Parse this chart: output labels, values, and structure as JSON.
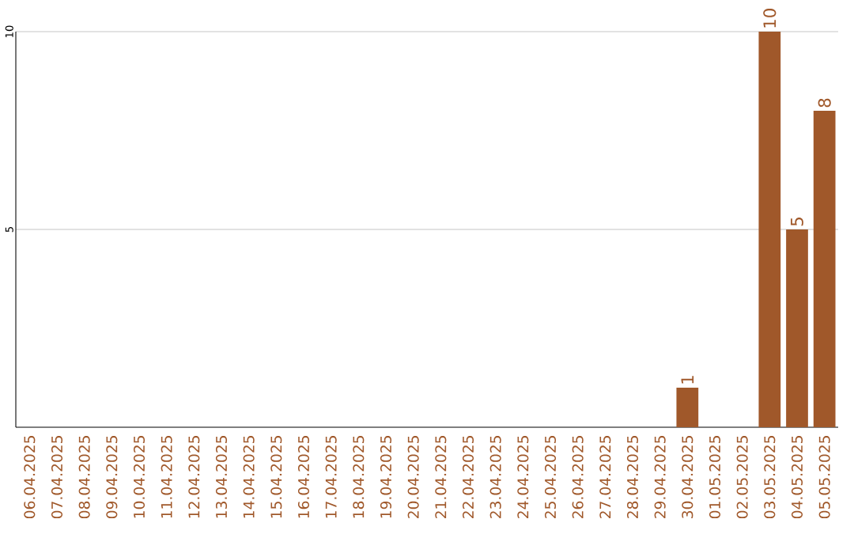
{
  "chart_data": {
    "type": "bar",
    "categories": [
      "06.04.2025",
      "07.04.2025",
      "08.04.2025",
      "09.04.2025",
      "10.04.2025",
      "11.04.2025",
      "12.04.2025",
      "13.04.2025",
      "14.04.2025",
      "15.04.2025",
      "16.04.2025",
      "17.04.2025",
      "18.04.2025",
      "19.04.2025",
      "20.04.2025",
      "21.04.2025",
      "22.04.2025",
      "23.04.2025",
      "24.04.2025",
      "25.04.2025",
      "26.04.2025",
      "27.04.2025",
      "28.04.2025",
      "29.04.2025",
      "30.04.2025",
      "01.05.2025",
      "02.05.2025",
      "03.05.2025",
      "04.05.2025",
      "05.05.2025"
    ],
    "values": [
      0,
      0,
      0,
      0,
      0,
      0,
      0,
      0,
      0,
      0,
      0,
      0,
      0,
      0,
      0,
      0,
      0,
      0,
      0,
      0,
      0,
      0,
      0,
      0,
      1,
      0,
      0,
      10,
      5,
      8
    ],
    "value_labels": [
      null,
      null,
      null,
      null,
      null,
      null,
      null,
      null,
      null,
      null,
      null,
      null,
      null,
      null,
      null,
      null,
      null,
      null,
      null,
      null,
      null,
      null,
      null,
      null,
      "1",
      null,
      null,
      "10",
      "5",
      "8"
    ],
    "color": "#a0582a",
    "ylim": [
      0,
      10
    ],
    "yticks": [
      5,
      10
    ],
    "grid": "y"
  }
}
